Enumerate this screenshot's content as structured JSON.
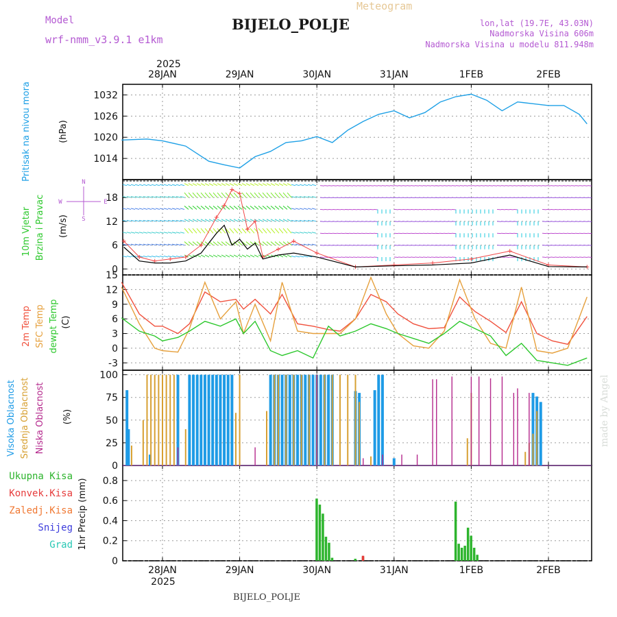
{
  "header": {
    "model_label": "Model",
    "model_name": "wrf-nmm_v3.9.1  e1km",
    "chart_title": "Meteogram",
    "station": "BIJELO_POLJE",
    "lonlat": "lon,lat (19.7E, 43.03N)",
    "altitude": "Nadmorska Visina 606m",
    "model_altitude": "Nadmorska Visina u modelu 811.948m",
    "year_top": "2025",
    "year_bottom": "2025",
    "footer_station": "BIJELO_POLJE",
    "watermark": "made by Angel"
  },
  "colors": {
    "pressure": "#1ea0e6",
    "temp2m": "#f0503c",
    "sfc_temp": "#e6a03c",
    "dewpt": "#2dc82d",
    "high_cloud": "#1e9be6",
    "mid_cloud": "#d7a032",
    "low_cloud": "#b4288c",
    "total_precip": "#2db42d",
    "conv_precip": "#e63c3c",
    "purple_text": "#b45ad2",
    "wind_speed_line": "#000000",
    "wind_gust_marks": "#f04646"
  },
  "chart_data": [
    {
      "type": "line",
      "panel": "pressure",
      "ylabel_title": "Pritisak na nivou mora",
      "ylabel_units": "(hPa)",
      "ylim": [
        1008,
        1035
      ],
      "yticks": [
        1014,
        1020,
        1026,
        1032
      ],
      "x_dates": [
        "28JAN",
        "29JAN",
        "30JAN",
        "31JAN",
        "1FEB",
        "2FEB"
      ],
      "x": [
        -0.53,
        -0.2,
        0.0,
        0.3,
        0.6,
        0.8,
        1.0,
        1.2,
        1.4,
        1.6,
        1.8,
        2.0,
        2.2,
        2.4,
        2.6,
        2.8,
        3.0,
        3.2,
        3.4,
        3.6,
        3.8,
        4.0,
        4.2,
        4.4,
        4.6,
        4.8,
        5.0,
        5.2,
        5.4,
        5.5
      ],
      "series": [
        {
          "values": [
            1019.2,
            1019.5,
            1019.0,
            1017.5,
            1013.2,
            1012.2,
            1011.3,
            1014.5,
            1016.0,
            1018.5,
            1019.0,
            1020.2,
            1018.5,
            1022.0,
            1024.5,
            1026.5,
            1027.5,
            1025.5,
            1027.0,
            1030.0,
            1031.5,
            1032.2,
            1030.5,
            1027.5,
            1030.0,
            1029.5,
            1029.0,
            1029.0,
            1026.5,
            1023.8
          ]
        }
      ]
    },
    {
      "type": "line",
      "panel": "wind",
      "ylabel_title": "10m Vjetar Brzina i Pravac",
      "ylabel_units": "(m/s)",
      "compass": [
        "N",
        "S",
        "W",
        "E"
      ],
      "ylim": [
        -1.5,
        22.5
      ],
      "yticks": [
        0,
        6,
        12,
        18
      ],
      "arrow_rows": [
        3,
        6,
        9,
        12,
        15,
        18,
        21
      ],
      "x": [
        -0.5,
        -0.3,
        -0.1,
        0.1,
        0.3,
        0.5,
        0.7,
        0.8,
        0.9,
        1.0,
        1.1,
        1.2,
        1.3,
        1.5,
        1.7,
        2.0,
        2.5,
        3.0,
        3.5,
        4.0,
        4.5,
        5.0,
        5.5
      ],
      "series": [
        {
          "name": "speed",
          "values": [
            5.5,
            2.0,
            1.5,
            1.5,
            2.0,
            4.0,
            9.0,
            11.0,
            6.0,
            7.5,
            5.0,
            6.5,
            2.5,
            3.5,
            4.0,
            3.0,
            0.5,
            0.8,
            1.0,
            1.5,
            3.5,
            0.6,
            0.5
          ]
        },
        {
          "name": "gust",
          "values": [
            7.0,
            3.0,
            2.0,
            2.5,
            3.0,
            6.0,
            13.0,
            16.0,
            20.0,
            19.0,
            10.0,
            12.0,
            3.0,
            5.0,
            7.0,
            4.0,
            0.5,
            1.0,
            1.5,
            2.5,
            4.5,
            1.0,
            0.5
          ]
        }
      ]
    },
    {
      "type": "line",
      "panel": "temperature",
      "ylabel_titles": [
        "2m Temp",
        "SFC Temp",
        "dewpt Temp"
      ],
      "ylabel_units": "(C)",
      "ylim": [
        -4.5,
        15
      ],
      "yticks": [
        -3,
        0,
        3,
        6,
        9,
        12,
        15
      ],
      "x": [
        -0.53,
        -0.3,
        -0.1,
        0.0,
        0.2,
        0.35,
        0.55,
        0.75,
        0.95,
        1.05,
        1.2,
        1.4,
        1.55,
        1.75,
        1.95,
        2.15,
        2.3,
        2.5,
        2.7,
        2.9,
        3.05,
        3.25,
        3.45,
        3.65,
        3.85,
        4.05,
        4.25,
        4.45,
        4.65,
        4.85,
        5.05,
        5.25,
        5.5
      ],
      "series": [
        {
          "name": "2m Temp",
          "values": [
            13.5,
            7.0,
            4.5,
            4.5,
            3.0,
            5.0,
            11.5,
            9.5,
            10.0,
            8.0,
            10.0,
            7.0,
            11.0,
            5.0,
            4.5,
            3.8,
            3.5,
            6.0,
            11.0,
            9.5,
            7.0,
            5.0,
            4.0,
            4.2,
            10.5,
            7.5,
            5.5,
            3.2,
            9.5,
            3.0,
            1.5,
            0.8,
            6.5
          ]
        },
        {
          "name": "SFC Temp",
          "values": [
            12.5,
            5.0,
            0.0,
            -0.5,
            -0.8,
            4.0,
            13.5,
            6.0,
            9.5,
            3.0,
            9.0,
            1.5,
            13.5,
            3.5,
            3.0,
            3.0,
            3.0,
            6.0,
            14.5,
            7.0,
            3.0,
            0.5,
            0.0,
            3.5,
            14.0,
            6.0,
            1.0,
            0.0,
            12.5,
            -0.5,
            -1.0,
            0.0,
            10.5
          ]
        },
        {
          "name": "dewpt Temp",
          "values": [
            6.2,
            3.5,
            2.5,
            1.5,
            2.2,
            3.5,
            5.5,
            4.5,
            6.0,
            3.0,
            5.5,
            -0.5,
            -1.5,
            -0.5,
            -2.0,
            4.5,
            2.5,
            3.5,
            5.0,
            4.0,
            3.0,
            2.0,
            1.0,
            3.0,
            5.5,
            4.0,
            2.5,
            -1.5,
            1.0,
            -2.5,
            -3.0,
            -3.5,
            -2.0
          ]
        }
      ]
    },
    {
      "type": "bar",
      "panel": "clouds",
      "ylabel_titles": [
        "Visoka Oblacnost",
        "Srednja Oblacnost",
        "Niska Oblacnost"
      ],
      "ylabel_units": "(%)",
      "ylim": [
        0,
        105
      ],
      "yticks": [
        0,
        25,
        50,
        75,
        100
      ],
      "series": [
        {
          "name": "Visoka Oblacnost",
          "x": [
            -0.46,
            -0.44,
            -0.16,
            0.2,
            0.35,
            0.4,
            0.45,
            0.5,
            0.55,
            0.6,
            0.65,
            0.7,
            0.75,
            0.8,
            0.85,
            0.9,
            1.4,
            1.45,
            1.5,
            1.55,
            1.6,
            1.65,
            1.7,
            1.75,
            1.8,
            1.85,
            1.9,
            1.95,
            2.0,
            2.05,
            2.1,
            2.15,
            2.2,
            2.5,
            2.55,
            2.75,
            2.8,
            2.85,
            3.0,
            4.8,
            4.85,
            4.9
          ],
          "values": [
            83,
            40,
            12,
            100,
            100,
            100,
            100,
            100,
            100,
            100,
            100,
            100,
            100,
            100,
            100,
            100,
            100,
            100,
            100,
            100,
            100,
            100,
            100,
            100,
            100,
            100,
            100,
            100,
            100,
            100,
            100,
            100,
            100,
            82,
            80,
            83,
            100,
            100,
            8,
            80,
            76,
            70
          ]
        },
        {
          "name": "Srednja Oblacnost",
          "x": [
            -0.4,
            -0.25,
            -0.2,
            -0.15,
            -0.1,
            -0.05,
            0.0,
            0.05,
            0.1,
            0.15,
            0.3,
            0.95,
            1.0,
            1.35,
            1.45,
            1.5,
            1.6,
            1.7,
            1.8,
            1.9,
            2.0,
            2.1,
            2.2,
            2.3,
            2.4,
            2.5,
            2.55,
            2.7,
            3.95,
            4.0,
            4.7,
            4.75,
            4.8,
            4.85
          ],
          "values": [
            22,
            50,
            100,
            100,
            100,
            100,
            100,
            100,
            100,
            100,
            40,
            58,
            100,
            60,
            100,
            100,
            100,
            100,
            100,
            100,
            100,
            100,
            100,
            100,
            100,
            100,
            70,
            10,
            30,
            80,
            15,
            25,
            35,
            60
          ]
        },
        {
          "name": "Niska Oblacnost",
          "x": [
            0.2,
            1.2,
            2.0,
            2.6,
            2.85,
            3.1,
            3.3,
            3.5,
            3.55,
            3.75,
            4.0,
            4.1,
            4.25,
            4.4,
            4.55,
            4.6,
            4.75
          ],
          "values": [
            20,
            20,
            100,
            8,
            12,
            12,
            12,
            95,
            95,
            98,
            98,
            98,
            96,
            98,
            80,
            85,
            80
          ]
        }
      ]
    },
    {
      "type": "bar",
      "panel": "precip",
      "legend": [
        "Ukupna Kisa",
        "Konvek.Kisa",
        "Zaledj.Kisa",
        "Snijeg",
        "Grad"
      ],
      "ylabel_units": "1hr Precip (mm)",
      "ylim": [
        0,
        0.95
      ],
      "yticks": [
        0,
        0.2,
        0.4,
        0.6,
        0.8
      ],
      "series": [
        {
          "name": "Ukupna Kisa",
          "x": [
            2.0,
            2.04,
            2.08,
            2.12,
            2.16,
            2.2,
            2.5,
            2.6,
            3.8,
            3.84,
            3.88,
            3.92,
            3.96,
            4.0,
            4.04,
            4.08
          ],
          "values": [
            0.62,
            0.56,
            0.47,
            0.24,
            0.18,
            0.03,
            0.02,
            0.04,
            0.59,
            0.17,
            0.13,
            0.15,
            0.33,
            0.25,
            0.13,
            0.06
          ]
        },
        {
          "name": "Konvek.Kisa",
          "x": [
            2.6
          ],
          "values": [
            0.05
          ]
        }
      ]
    }
  ]
}
